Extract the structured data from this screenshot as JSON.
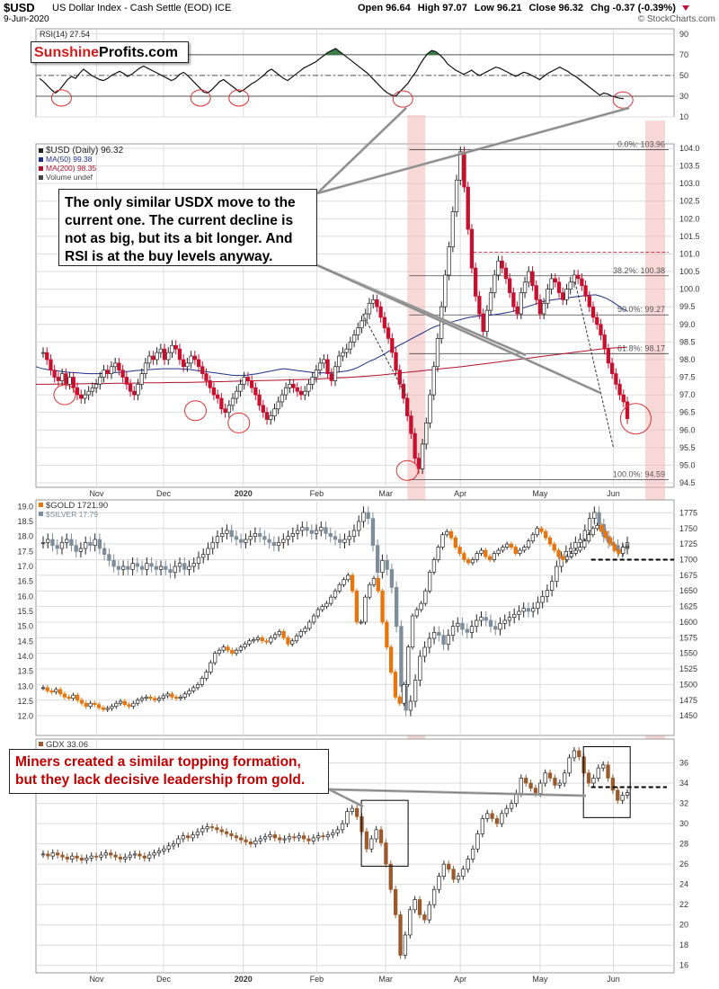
{
  "header": {
    "symbol": "$USD",
    "name": "US Dollar Index - Cash Settle (EOD)",
    "exchange": "ICE",
    "date": "9-Jun-2020",
    "open": "Open 96.64",
    "high": "High 97.07",
    "low": "Low 96.21",
    "close": "Close 96.32",
    "change": "Chg -0.37 (-0.39%)",
    "source": "© StockCharts.com"
  },
  "logo": {
    "part1": "Sunshine",
    "part2": "Profits.com"
  },
  "annotations": {
    "usd_note": "The only similar USDX move to the\ncurrent one. The current decline is\nnot as big, but its a bit longer. And\nRSI is at the buy levels anyway.",
    "gdx_note": "Miners created a similar topping formation,\nbut they lack decisive leadership from gold."
  },
  "colors": {
    "up_candle": "#ffffff",
    "usd_down": "#c8102e",
    "gold": "#e8740c",
    "silver": "#7d8d99",
    "gdx": "#9a5a2c",
    "ma50": "#1f2d8a",
    "ma200": "#b0102a",
    "highlight": "#f2b7b7",
    "grid": "#dcdcdc",
    "rsi_fill": "#3a7d44"
  },
  "chart_data": [
    {
      "type": "line",
      "panel": "rsi",
      "title": "RSI(14) 27.54",
      "ylim": [
        10,
        95
      ],
      "yticks": [
        10,
        30,
        50,
        70,
        90
      ],
      "levels": [
        30,
        50,
        70
      ],
      "series": [
        {
          "name": "RSI(14)",
          "last": 27.54,
          "values": [
            47,
            44,
            40,
            36,
            33,
            36,
            41,
            46,
            49,
            47,
            52,
            56,
            53,
            50,
            48,
            46,
            45,
            47,
            50,
            52,
            54,
            52,
            49,
            51,
            54,
            57,
            59,
            57,
            55,
            53,
            51,
            49,
            47,
            45,
            47,
            51,
            53,
            50,
            46,
            42,
            38,
            34,
            33,
            36,
            40,
            44,
            46,
            43,
            40,
            37,
            34,
            36,
            39,
            42,
            44,
            47,
            50,
            54,
            56,
            53,
            50,
            47,
            45,
            48,
            51,
            54,
            57,
            59,
            61,
            63,
            66,
            69,
            72,
            74,
            76,
            73,
            70,
            67,
            64,
            61,
            58,
            55,
            52,
            48,
            44,
            40,
            36,
            33,
            31,
            30,
            34,
            38,
            42,
            48,
            53,
            60,
            66,
            71,
            74,
            73,
            70,
            66,
            61,
            58,
            55,
            53,
            51,
            53,
            55,
            52,
            50,
            52,
            54,
            56,
            58,
            57,
            55,
            53,
            51,
            49,
            51,
            53,
            52,
            50,
            48,
            46,
            49,
            52,
            54,
            56,
            58,
            56,
            54,
            51,
            49,
            46,
            43,
            40,
            37,
            34,
            31,
            33,
            32,
            30,
            29,
            28,
            27.54
          ]
        }
      ]
    },
    {
      "type": "candlestick",
      "panel": "usd",
      "title": "$USD (Daily) 96.32",
      "ylim": [
        94.5,
        104.0
      ],
      "yticks": [
        94.5,
        95.0,
        95.5,
        96.0,
        96.5,
        97.0,
        97.5,
        98.0,
        98.5,
        99.0,
        99.5,
        100.0,
        100.5,
        101.0,
        101.5,
        102.0,
        102.5,
        103.0,
        103.5,
        104.0
      ],
      "xlabels": [
        "Nov",
        "Dec",
        "2020",
        "Feb",
        "Mar",
        "Apr",
        "May",
        "Jun"
      ],
      "legend": [
        "$USD (Daily) 96.32",
        "MA(50) 99.38",
        "MA(200) 98.35",
        "Volume undef"
      ],
      "closes": [
        98.2,
        98.0,
        97.7,
        97.5,
        97.4,
        97.6,
        97.3,
        97.5,
        97.2,
        97.0,
        96.9,
        97.0,
        97.1,
        97.2,
        97.3,
        97.5,
        97.7,
        97.6,
        97.8,
        97.9,
        97.7,
        97.5,
        97.3,
        97.1,
        97.0,
        97.3,
        97.6,
        97.9,
        98.1,
        98.0,
        98.2,
        98.3,
        98.0,
        98.2,
        98.4,
        98.3,
        98.0,
        97.8,
        97.9,
        98.1,
        98.0,
        97.8,
        97.6,
        97.4,
        97.2,
        97.0,
        96.9,
        96.6,
        96.5,
        96.7,
        96.9,
        97.1,
        97.3,
        97.5,
        97.4,
        97.2,
        97.0,
        96.7,
        96.5,
        96.3,
        96.4,
        96.6,
        96.8,
        97.0,
        97.2,
        97.3,
        97.2,
        97.1,
        97.0,
        97.1,
        97.3,
        97.5,
        97.7,
        97.9,
        98.0,
        97.6,
        97.4,
        97.8,
        98.1,
        98.2,
        98.3,
        98.5,
        98.7,
        98.9,
        99.1,
        99.3,
        99.6,
        99.7,
        99.5,
        99.2,
        98.9,
        98.6,
        98.2,
        97.7,
        97.3,
        96.9,
        96.4,
        95.9,
        95.2,
        94.9,
        95.6,
        96.2,
        97.0,
        97.8,
        98.6,
        99.5,
        100.4,
        101.2,
        102.2,
        103.1,
        103.9,
        102.9,
        101.7,
        100.6,
        99.8,
        99.3,
        98.8,
        99.4,
        99.9,
        100.4,
        100.8,
        100.6,
        100.3,
        99.9,
        99.5,
        99.3,
        99.9,
        100.2,
        100.5,
        100.1,
        99.7,
        99.3,
        99.6,
        100.0,
        100.3,
        100.2,
        99.9,
        99.7,
        100.0,
        100.2,
        100.4,
        100.3,
        100.1,
        99.8,
        99.5,
        99.2,
        99.0,
        98.7,
        98.3,
        97.9,
        97.6,
        97.3,
        97.0,
        96.8,
        96.32
      ],
      "ma50": [
        97.8,
        97.75,
        97.72,
        97.7,
        97.68,
        97.66,
        97.64,
        97.63,
        97.62,
        97.61,
        97.6,
        97.6,
        97.6,
        97.61,
        97.62,
        97.63,
        97.64,
        97.66,
        97.67,
        97.69,
        97.7,
        97.71,
        97.72,
        97.73,
        97.74,
        97.74,
        97.74,
        97.74,
        97.73,
        97.72,
        97.7,
        97.68,
        97.66,
        97.64,
        97.62,
        97.6,
        97.58,
        97.56,
        97.55,
        97.55,
        97.56,
        97.58,
        97.6,
        97.63,
        97.66,
        97.69,
        97.72,
        97.74,
        97.72,
        97.7,
        97.68,
        97.66,
        97.64,
        97.62,
        97.62,
        97.62,
        97.63,
        97.64,
        97.66,
        97.68,
        97.72,
        97.78,
        97.86,
        97.94,
        98.0,
        98.08,
        98.16,
        98.25,
        98.34,
        98.42,
        98.5,
        98.58,
        98.66,
        98.74,
        98.82,
        98.9,
        98.96,
        99.0,
        99.04,
        99.08,
        99.12,
        99.16,
        99.2,
        99.22,
        99.24,
        99.25,
        99.26,
        99.28,
        99.3,
        99.33,
        99.36,
        99.4,
        99.45,
        99.5,
        99.55,
        99.6,
        99.65,
        99.68,
        99.7,
        99.72,
        99.74,
        99.76,
        99.78,
        99.8,
        99.82,
        99.83,
        99.84,
        99.8,
        99.74,
        99.66,
        99.56,
        99.45,
        99.38
      ],
      "ma200": [
        97.3,
        97.3,
        97.31,
        97.31,
        97.32,
        97.32,
        97.33,
        97.33,
        97.34,
        97.34,
        97.35,
        97.35,
        97.36,
        97.37,
        97.38,
        97.39,
        97.4,
        97.41,
        97.42,
        97.43,
        97.44,
        97.46,
        97.48,
        97.5,
        97.53,
        97.56,
        97.6,
        97.64,
        97.68,
        97.72,
        97.76,
        97.8,
        97.85,
        97.9,
        97.95,
        98.0,
        98.05,
        98.1,
        98.15,
        98.2,
        98.25,
        98.3,
        98.33,
        98.35
      ],
      "annotations": {
        "fib_0": "0.0%: 103.96",
        "fib_382": "38.2%: 100.38",
        "fib_50": "50.0%: 99.27",
        "fib_618": "61.8%: 98.17",
        "fib_100": "100.0%: 94.59"
      },
      "fib_levels": [
        103.96,
        100.38,
        99.27,
        98.17,
        94.59
      ],
      "resistance": 101.05
    },
    {
      "type": "candlestick",
      "panel": "gold_silver",
      "series": [
        {
          "name": "$GOLD 1721.90",
          "axis": "right",
          "ylim": [
            1430,
            1790
          ],
          "yticks": [
            1450,
            1475,
            1500,
            1525,
            1550,
            1575,
            1600,
            1625,
            1650,
            1675,
            1700,
            1725,
            1750,
            1775
          ],
          "values": [
            1495,
            1490,
            1488,
            1492,
            1485,
            1480,
            1478,
            1483,
            1475,
            1470,
            1465,
            1470,
            1468,
            1463,
            1460,
            1462,
            1465,
            1470,
            1473,
            1468,
            1465,
            1470,
            1475,
            1478,
            1480,
            1478,
            1475,
            1478,
            1482,
            1485,
            1480,
            1478,
            1480,
            1485,
            1490,
            1495,
            1500,
            1510,
            1520,
            1535,
            1550,
            1555,
            1560,
            1555,
            1550,
            1555,
            1560,
            1565,
            1570,
            1572,
            1575,
            1570,
            1568,
            1575,
            1580,
            1585,
            1575,
            1565,
            1570,
            1578,
            1585,
            1590,
            1600,
            1610,
            1620,
            1625,
            1630,
            1640,
            1650,
            1660,
            1668,
            1675,
            1650,
            1600,
            1600,
            1640,
            1660,
            1670,
            1650,
            1600,
            1560,
            1520,
            1480,
            1470,
            1500,
            1560,
            1610,
            1620,
            1630,
            1650,
            1680,
            1700,
            1720,
            1740,
            1745,
            1735,
            1720,
            1710,
            1700,
            1695,
            1700,
            1710,
            1715,
            1705,
            1700,
            1710,
            1715,
            1720,
            1725,
            1720,
            1710,
            1715,
            1720,
            1730,
            1740,
            1750,
            1745,
            1735,
            1725,
            1715,
            1705,
            1700,
            1705,
            1710,
            1715,
            1720,
            1730,
            1740,
            1750,
            1755,
            1745,
            1735,
            1725,
            1715,
            1710,
            1720,
            1721.9
          ]
        },
        {
          "name": "$SILVER 17.79",
          "axis": "left",
          "ylim": [
            11.6,
            19.1
          ],
          "yticks": [
            12.0,
            12.5,
            13.0,
            13.5,
            14.0,
            14.5,
            15.0,
            15.5,
            16.0,
            16.5,
            17.0,
            17.5,
            18.0,
            18.5,
            19.0
          ],
          "values": [
            17.8,
            17.9,
            17.7,
            17.6,
            17.8,
            17.9,
            17.7,
            17.5,
            17.6,
            17.8,
            17.7,
            17.9,
            17.6,
            17.4,
            17.2,
            17.0,
            16.9,
            17.0,
            16.9,
            17.1,
            17.0,
            16.9,
            17.1,
            17.0,
            16.9,
            17.0,
            16.9,
            16.8,
            17.0,
            17.1,
            16.9,
            17.0,
            17.1,
            17.3,
            17.4,
            17.6,
            17.8,
            18.0,
            18.1,
            18.2,
            18.0,
            17.9,
            17.8,
            17.9,
            18.0,
            18.1,
            18.0,
            17.9,
            17.8,
            17.7,
            17.8,
            17.9,
            18.0,
            18.1,
            18.2,
            18.3,
            18.2,
            18.1,
            18.2,
            18.3,
            18.1,
            18.0,
            17.9,
            17.8,
            17.9,
            18.0,
            18.2,
            18.5,
            18.8,
            18.6,
            17.7,
            16.8,
            17.2,
            16.9,
            16.3,
            15.0,
            13.0,
            12.2,
            12.5,
            13.2,
            14.0,
            14.3,
            14.6,
            14.8,
            14.7,
            14.4,
            14.7,
            15.0,
            15.1,
            14.9,
            14.8,
            15.0,
            15.2,
            15.3,
            15.2,
            15.0,
            14.9,
            15.1,
            15.2,
            15.3,
            15.4,
            15.5,
            15.6,
            15.5,
            15.6,
            15.8,
            16.0,
            16.2,
            16.5,
            17.0,
            17.3,
            17.5,
            17.6,
            17.8,
            17.9,
            18.2,
            18.6,
            18.8,
            18.4,
            18.0,
            17.8,
            17.7,
            17.5,
            17.6,
            17.79
          ]
        }
      ],
      "reference_line": 1700
    },
    {
      "type": "candlestick",
      "panel": "gdx",
      "title": "GDX 33.06",
      "ylim": [
        15.8,
        38
      ],
      "yticks": [
        16,
        18,
        20,
        22,
        24,
        26,
        28,
        30,
        32,
        34,
        36
      ],
      "xlabels": [
        "Nov",
        "Dec",
        "2020",
        "Feb",
        "Mar",
        "Apr",
        "May",
        "Jun"
      ],
      "series": [
        {
          "name": "GDX 33.06",
          "values": [
            27.0,
            26.8,
            27.1,
            26.9,
            26.7,
            26.5,
            26.8,
            26.6,
            26.4,
            26.6,
            26.8,
            26.7,
            26.9,
            27.1,
            26.9,
            26.7,
            26.5,
            26.7,
            26.9,
            27.0,
            26.8,
            26.6,
            26.9,
            27.1,
            27.3,
            27.5,
            27.8,
            28.0,
            28.5,
            28.8,
            28.6,
            28.9,
            29.2,
            29.5,
            29.7,
            29.6,
            29.4,
            29.2,
            29.0,
            28.8,
            28.6,
            28.4,
            28.2,
            28.0,
            28.3,
            28.5,
            28.7,
            28.9,
            28.6,
            28.4,
            28.5,
            28.7,
            28.6,
            28.8,
            28.5,
            28.3,
            28.6,
            28.8,
            28.7,
            28.9,
            29.1,
            29.4,
            30.0,
            31.2,
            31.5,
            30.7,
            29.2,
            27.5,
            28.5,
            29.4,
            28.1,
            26.0,
            23.5,
            21.0,
            17.0,
            19.0,
            21.5,
            22.5,
            21.0,
            20.5,
            22.0,
            23.5,
            24.8,
            26.0,
            25.5,
            24.5,
            24.8,
            25.5,
            26.5,
            27.5,
            29.0,
            30.5,
            31.0,
            30.5,
            30.0,
            31.0,
            31.5,
            32.0,
            33.0,
            34.5,
            34.0,
            33.5,
            33.0,
            34.0,
            35.0,
            34.5,
            33.8,
            34.0,
            35.0,
            36.5,
            37.2,
            36.6,
            35.0,
            34.0,
            34.5,
            35.5,
            35.8,
            34.5,
            33.3,
            32.3,
            32.8,
            33.06
          ]
        }
      ],
      "reference_line": 33.6
    }
  ]
}
